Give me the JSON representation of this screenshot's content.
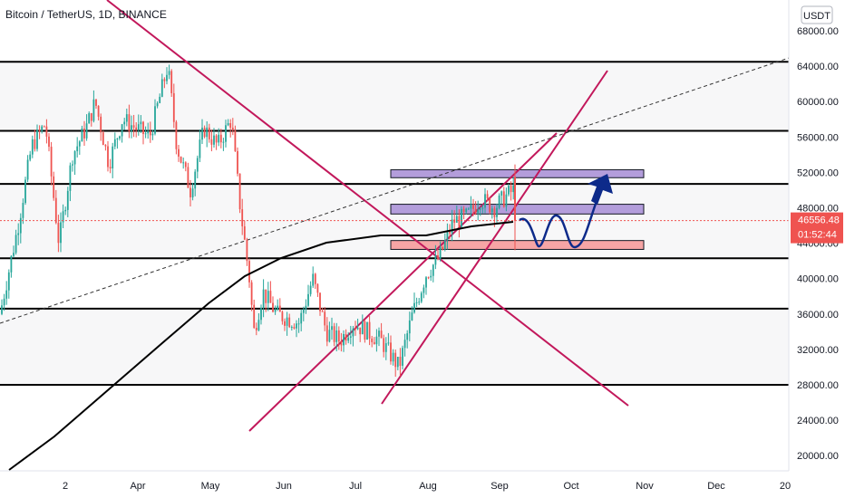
{
  "chart_data": {
    "type": "candlestick",
    "title": "Bitcoin / TetherUS, 1D, BINANCE",
    "currency": "USDT",
    "y_ticks": [
      20000,
      24000,
      28000,
      32000,
      36000,
      40000,
      44000,
      48000,
      52000,
      56000,
      60000,
      64000,
      68000
    ],
    "y_tick_labels": [
      "20000.00",
      "24000.00",
      "28000.00",
      "32000.00",
      "36000.00",
      "40000.00",
      "44000.00",
      "48000.00",
      "52000.00",
      "56000.00",
      "60000.00",
      "64000.00",
      "68000.00"
    ],
    "ylim": [
      17000,
      70000
    ],
    "x_labels": [
      "2",
      "Apr",
      "May",
      "Jun",
      "Jul",
      "Aug",
      "Sep",
      "Oct",
      "Nov",
      "Dec",
      "20"
    ],
    "current_price": "46556.48",
    "countdown": "01:52:44",
    "horizontal_levels": [
      64500,
      56700,
      50700,
      42300,
      36600,
      28000
    ],
    "zones": [
      {
        "kind": "resistance",
        "low": 51400,
        "high": 52300,
        "color": "#b39ddb"
      },
      {
        "kind": "resistance",
        "low": 47300,
        "high": 48400,
        "color": "#b39ddb"
      },
      {
        "kind": "support",
        "low": 43300,
        "high": 44300,
        "color": "#f6a5a5"
      }
    ],
    "projection": "dip then breakout arrow up",
    "colors": {
      "up": "#26a69a",
      "down": "#ef5350",
      "trend": "#c2185b",
      "ma": "#000000",
      "tag_bg": "#ef5350",
      "zone_border": "#131722",
      "arrow": "#0d2a8a"
    }
  }
}
